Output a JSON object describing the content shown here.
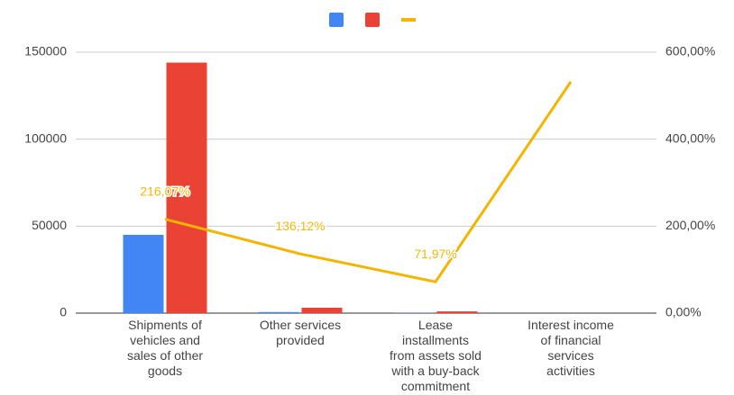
{
  "chart_data": {
    "type": "bar",
    "categories": [
      "Shipments of vehicles and sales of other goods",
      "Other services provided",
      "Lease installments from assets sold with a buy-back commitment",
      "Interest income of financial services activities"
    ],
    "series": [
      {
        "color": "#4285f4",
        "values": [
          45000,
          600,
          150,
          null
        ]
      },
      {
        "color": "#ea4335",
        "values": [
          144000,
          3100,
          1000,
          null
        ]
      },
      {
        "type": "line",
        "axis": "y2",
        "color": "#f4b400",
        "values": [
          216.07,
          136.12,
          71.97,
          532
        ],
        "value_labels": [
          "216,07%",
          "136,12%",
          "71,97%",
          null
        ]
      }
    ],
    "ylim": [
      0,
      150000
    ],
    "yticks": [
      0,
      50000,
      100000,
      150000
    ],
    "y2lim": [
      0,
      600
    ],
    "y2ticks": [
      {
        "value": 0,
        "label": "0,00%"
      },
      {
        "value": 200,
        "label": "200,00%"
      },
      {
        "value": 400,
        "label": "400,00%"
      },
      {
        "value": 600,
        "label": "600,00%"
      }
    ],
    "grid": true,
    "legend": "top"
  }
}
